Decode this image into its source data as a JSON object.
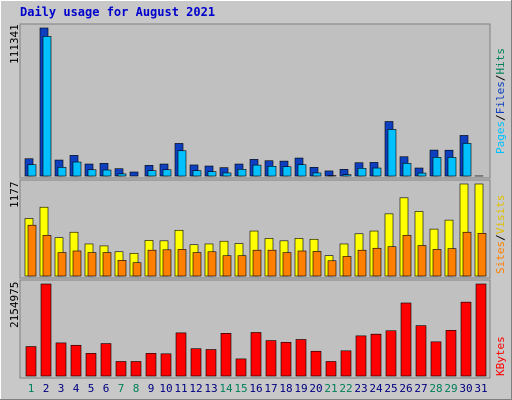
{
  "title": "Daily usage for August 2021",
  "colors": {
    "title": "#0000cc",
    "frame_bg": "#c8c8c8",
    "panel_bg": "#c0c0c0",
    "pages_dark": "#0d3fbf",
    "pages": "#00c0ff",
    "files": "#00c0ff",
    "hits": "#00805a",
    "sites": "#ff8000",
    "visits": "#ffff00",
    "kbytes": "#ff0000",
    "weekend_label": "#00805a",
    "weekday_label": "#000080",
    "separator": "#808080"
  },
  "chart_data": [
    {
      "type": "bar",
      "panel": "hits-files-pages",
      "ylabel_max": "111341",
      "legend": [
        "Pages",
        "/",
        "Files",
        "/",
        "Hits"
      ],
      "legend_colors": [
        "#00c0ff",
        "#000000",
        "#0d3fbf",
        "#000000",
        "#00805a"
      ],
      "categories": [
        "1",
        "2",
        "3",
        "4",
        "5",
        "6",
        "7",
        "8",
        "9",
        "10",
        "11",
        "12",
        "13",
        "14",
        "15",
        "16",
        "17",
        "18",
        "19",
        "20",
        "21",
        "22",
        "23",
        "24",
        "25",
        "26",
        "27",
        "28",
        "29",
        "30",
        "31"
      ],
      "weekend_days": [
        "1",
        "7",
        "8",
        "14",
        "15",
        "21",
        "22",
        "28",
        "29"
      ],
      "series": [
        {
          "name": "Hits",
          "values": [
            13000,
            111341,
            12000,
            15500,
            9000,
            9500,
            5500,
            3000,
            8000,
            9000,
            24500,
            8300,
            7500,
            6300,
            9000,
            12500,
            11500,
            11200,
            13500,
            6500,
            3800,
            5000,
            10000,
            10200,
            41000,
            14500,
            6000,
            19500,
            19400,
            30500,
            47
          ]
        },
        {
          "name": "Files",
          "values": [
            11500,
            108000,
            9500,
            13500,
            7700,
            7500,
            4600,
            2400,
            7000,
            7700,
            22000,
            7000,
            6300,
            5300,
            8000,
            11200,
            10300,
            10000,
            11500,
            5300,
            3300,
            4000,
            8800,
            9000,
            38000,
            12500,
            5200,
            17000,
            17000,
            27500,
            26
          ]
        }
      ]
    },
    {
      "type": "bar",
      "panel": "visits-sites",
      "ylabel_max": "1177",
      "legend": [
        "Sites",
        "/",
        "Visits"
      ],
      "legend_colors": [
        "#ff8000",
        "#000000",
        "#ffff00"
      ],
      "categories": [
        "1",
        "2",
        "3",
        "4",
        "5",
        "6",
        "7",
        "8",
        "9",
        "10",
        "11",
        "12",
        "13",
        "14",
        "15",
        "16",
        "17",
        "18",
        "19",
        "20",
        "21",
        "22",
        "23",
        "24",
        "25",
        "26",
        "27",
        "28",
        "29",
        "30",
        "31"
      ],
      "series": [
        {
          "name": "Visits",
          "values": [
            735,
            880,
            490,
            560,
            410,
            385,
            310,
            290,
            455,
            450,
            585,
            400,
            410,
            445,
            415,
            575,
            480,
            450,
            480,
            470,
            260,
            410,
            540,
            575,
            795,
            1000,
            825,
            600,
            715,
            1177,
            1177
          ]
        },
        {
          "name": "Sites",
          "values": [
            650,
            520,
            300,
            320,
            300,
            300,
            200,
            170,
            330,
            335,
            340,
            300,
            310,
            260,
            260,
            330,
            330,
            300,
            320,
            315,
            195,
            250,
            330,
            355,
            375,
            520,
            390,
            340,
            350,
            560,
            545
          ]
        }
      ]
    },
    {
      "type": "bar",
      "panel": "kbytes",
      "ylabel_max": "2154975",
      "legend": [
        "KBytes"
      ],
      "legend_colors": [
        "#ff0000"
      ],
      "categories": [
        "1",
        "2",
        "3",
        "4",
        "5",
        "6",
        "7",
        "8",
        "9",
        "10",
        "11",
        "12",
        "13",
        "14",
        "15",
        "16",
        "17",
        "18",
        "19",
        "20",
        "21",
        "22",
        "23",
        "24",
        "25",
        "26",
        "27",
        "28",
        "29",
        "30",
        "31"
      ],
      "series": [
        {
          "name": "KBytes",
          "values": [
            690000,
            2154975,
            775000,
            720000,
            530000,
            760000,
            340000,
            340000,
            530000,
            520000,
            1010000,
            640000,
            620000,
            1000000,
            400000,
            1020000,
            830000,
            790000,
            855000,
            580000,
            340000,
            590000,
            940000,
            980000,
            1060000,
            1710000,
            1180000,
            800000,
            1070000,
            1730000,
            2154975
          ]
        }
      ]
    }
  ],
  "x_labels": [
    "1",
    "2",
    "3",
    "4",
    "5",
    "6",
    "7",
    "8",
    "9",
    "10",
    "11",
    "12",
    "13",
    "14",
    "15",
    "16",
    "17",
    "18",
    "19",
    "20",
    "21",
    "22",
    "23",
    "24",
    "25",
    "26",
    "27",
    "28",
    "29",
    "30",
    "31"
  ]
}
